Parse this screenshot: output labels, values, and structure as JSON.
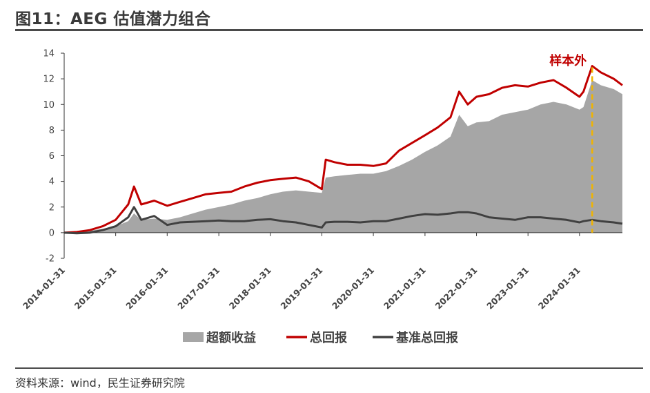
{
  "figure": {
    "title": "图11：AEG 估值潜力组合",
    "source": "资料来源：wind，民生证券研究院"
  },
  "chart_data": {
    "type": "area",
    "title": "",
    "xlabel": "",
    "ylabel": "",
    "ylim": [
      -2,
      14
    ],
    "yticks": [
      -2,
      0,
      2,
      4,
      6,
      8,
      10,
      12,
      14
    ],
    "xlim": [
      "2014-01-31",
      "2024-11-30"
    ],
    "xticks": [
      "2014-01-31",
      "2015-01-31",
      "2016-01-31",
      "2017-01-31",
      "2018-01-31",
      "2019-01-31",
      "2020-01-31",
      "2021-01-31",
      "2022-01-31",
      "2023-01-31",
      "2024-01-31"
    ],
    "grid": false,
    "legend_position": "bottom",
    "annotation": {
      "text": "样本外",
      "x": "2024-04-30",
      "color": "#c00000",
      "line_color": "#f0b400"
    },
    "series": [
      {
        "name": "超额收益",
        "type": "area",
        "color": "#a6a6a6",
        "x": [
          "2014-01-31",
          "2014-04-30",
          "2014-07-31",
          "2014-10-31",
          "2015-01-31",
          "2015-04-30",
          "2015-06-10",
          "2015-07-31",
          "2015-10-31",
          "2016-01-31",
          "2016-04-30",
          "2016-07-31",
          "2016-10-31",
          "2017-01-31",
          "2017-04-30",
          "2017-07-31",
          "2017-10-31",
          "2018-01-31",
          "2018-04-30",
          "2018-07-31",
          "2018-10-31",
          "2019-01-31",
          "2019-02-28",
          "2019-04-30",
          "2019-07-31",
          "2019-10-31",
          "2020-01-31",
          "2020-04-30",
          "2020-07-31",
          "2020-10-31",
          "2021-01-31",
          "2021-04-30",
          "2021-07-31",
          "2021-09-30",
          "2021-11-30",
          "2022-01-31",
          "2022-04-30",
          "2022-07-31",
          "2022-10-31",
          "2023-01-31",
          "2023-04-30",
          "2023-07-31",
          "2023-10-31",
          "2024-01-31",
          "2024-02-28",
          "2024-04-30",
          "2024-06-30",
          "2024-09-30",
          "2024-11-30"
        ],
        "values": [
          0,
          0.05,
          0.15,
          0.3,
          0.5,
          0.9,
          1.5,
          1.0,
          1.1,
          1.0,
          1.2,
          1.5,
          1.8,
          2.0,
          2.2,
          2.5,
          2.7,
          3.0,
          3.2,
          3.3,
          3.2,
          3.1,
          4.3,
          4.4,
          4.5,
          4.6,
          4.6,
          4.8,
          5.2,
          5.7,
          6.3,
          6.8,
          7.5,
          9.2,
          8.3,
          8.6,
          8.7,
          9.2,
          9.4,
          9.6,
          10.0,
          10.2,
          10.0,
          9.6,
          9.8,
          11.9,
          11.5,
          11.2,
          10.8
        ]
      },
      {
        "name": "总回报",
        "type": "line",
        "color": "#c00000",
        "x": [
          "2014-01-31",
          "2014-04-30",
          "2014-07-31",
          "2014-10-31",
          "2015-01-31",
          "2015-04-30",
          "2015-06-10",
          "2015-07-31",
          "2015-10-31",
          "2016-01-31",
          "2016-04-30",
          "2016-07-31",
          "2016-10-31",
          "2017-01-31",
          "2017-04-30",
          "2017-07-31",
          "2017-10-31",
          "2018-01-31",
          "2018-04-30",
          "2018-07-31",
          "2018-10-31",
          "2019-01-31",
          "2019-02-28",
          "2019-04-30",
          "2019-07-31",
          "2019-10-31",
          "2020-01-31",
          "2020-04-30",
          "2020-07-31",
          "2020-10-31",
          "2021-01-31",
          "2021-04-30",
          "2021-07-31",
          "2021-09-30",
          "2021-11-30",
          "2022-01-31",
          "2022-04-30",
          "2022-07-31",
          "2022-10-31",
          "2023-01-31",
          "2023-04-30",
          "2023-07-31",
          "2023-10-31",
          "2024-01-31",
          "2024-02-28",
          "2024-04-30",
          "2024-06-30",
          "2024-09-30",
          "2024-11-30"
        ],
        "values": [
          0,
          0.05,
          0.2,
          0.5,
          1.0,
          2.2,
          3.6,
          2.2,
          2.5,
          2.1,
          2.4,
          2.7,
          3.0,
          3.1,
          3.2,
          3.6,
          3.9,
          4.1,
          4.2,
          4.3,
          4.0,
          3.4,
          5.7,
          5.5,
          5.3,
          5.3,
          5.2,
          5.4,
          6.4,
          7.0,
          7.6,
          8.2,
          9.0,
          11.0,
          10.0,
          10.6,
          10.8,
          11.3,
          11.5,
          11.4,
          11.7,
          11.9,
          11.3,
          10.6,
          11.0,
          13.0,
          12.5,
          12.0,
          11.5
        ]
      },
      {
        "name": "基准总回报",
        "type": "line",
        "color": "#404040",
        "x": [
          "2014-01-31",
          "2014-04-30",
          "2014-07-31",
          "2014-10-31",
          "2015-01-31",
          "2015-04-30",
          "2015-06-10",
          "2015-07-31",
          "2015-10-31",
          "2016-01-31",
          "2016-04-30",
          "2016-07-31",
          "2016-10-31",
          "2017-01-31",
          "2017-04-30",
          "2017-07-31",
          "2017-10-31",
          "2018-01-31",
          "2018-04-30",
          "2018-07-31",
          "2018-10-31",
          "2019-01-31",
          "2019-02-28",
          "2019-04-30",
          "2019-07-31",
          "2019-10-31",
          "2020-01-31",
          "2020-04-30",
          "2020-07-31",
          "2020-10-31",
          "2021-01-31",
          "2021-04-30",
          "2021-07-31",
          "2021-09-30",
          "2021-11-30",
          "2022-01-31",
          "2022-04-30",
          "2022-07-31",
          "2022-10-31",
          "2023-01-31",
          "2023-04-30",
          "2023-07-31",
          "2023-10-31",
          "2024-01-31",
          "2024-02-28",
          "2024-04-30",
          "2024-06-30",
          "2024-09-30",
          "2024-11-30"
        ],
        "values": [
          0,
          -0.05,
          0,
          0.2,
          0.5,
          1.2,
          2.0,
          1.0,
          1.3,
          0.6,
          0.8,
          0.85,
          0.9,
          0.95,
          0.9,
          0.9,
          1.0,
          1.05,
          0.9,
          0.8,
          0.6,
          0.4,
          0.8,
          0.85,
          0.85,
          0.8,
          0.9,
          0.9,
          1.1,
          1.3,
          1.45,
          1.4,
          1.5,
          1.6,
          1.6,
          1.5,
          1.2,
          1.1,
          1.0,
          1.2,
          1.2,
          1.1,
          1.0,
          0.8,
          0.9,
          1.0,
          0.9,
          0.8,
          0.7
        ]
      }
    ]
  }
}
